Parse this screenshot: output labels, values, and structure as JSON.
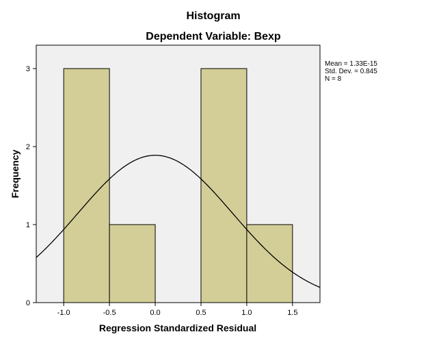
{
  "chart_data": {
    "type": "bar",
    "title": "Histogram",
    "subtitle": "Dependent Variable: Bexp",
    "xlabel": "Regression Standardized Residual",
    "ylabel": "Frequency",
    "xlim": [
      -1.3,
      1.8
    ],
    "ylim": [
      0,
      3.3
    ],
    "x_ticks": [
      -1.0,
      -0.5,
      0.0,
      0.5,
      1.0,
      1.5
    ],
    "x_tick_labels": [
      "-1.0",
      "-0.5",
      "0.0",
      "0.5",
      "1.0",
      "1.5"
    ],
    "y_ticks": [
      0,
      1,
      2,
      3
    ],
    "y_tick_labels": [
      "0",
      "1",
      "2",
      "3"
    ],
    "bins": [
      {
        "x0": -1.0,
        "x1": -0.5,
        "count": 3
      },
      {
        "x0": -0.5,
        "x1": 0.0,
        "count": 1
      },
      {
        "x0": 0.5,
        "x1": 1.0,
        "count": 3
      },
      {
        "x0": 1.0,
        "x1": 1.5,
        "count": 1
      }
    ],
    "normal_curve": {
      "mean": 1.33e-15,
      "std_dev": 0.845,
      "n": 8,
      "bin_width": 0.5
    },
    "stats_legend": [
      "Mean = 1.33E-15",
      "Std. Dev. = 0.845",
      "N = 8"
    ],
    "colors": {
      "bar_fill": "#d3ce97",
      "plot_background": "#f0f0f0",
      "curve": "#000000"
    },
    "grid": false,
    "legend_placement": "right"
  }
}
